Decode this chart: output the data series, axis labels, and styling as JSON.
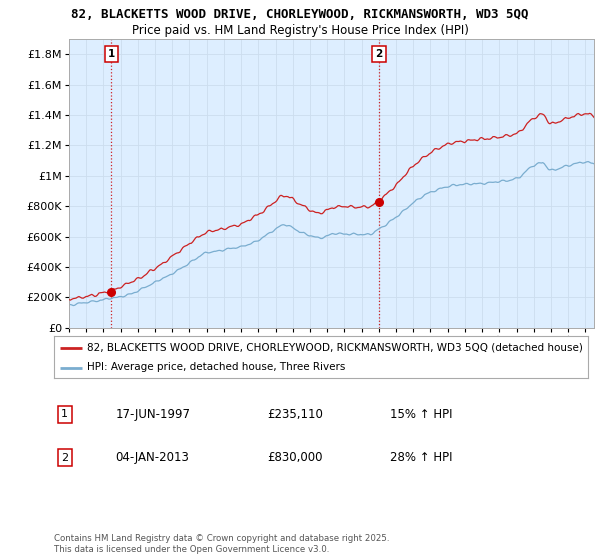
{
  "title_line1": "82, BLACKETTS WOOD DRIVE, CHORLEYWOOD, RICKMANSWORTH, WD3 5QQ",
  "title_line2": "Price paid vs. HM Land Registry's House Price Index (HPI)",
  "ytick_values": [
    0,
    200000,
    400000,
    600000,
    800000,
    1000000,
    1200000,
    1400000,
    1600000,
    1800000
  ],
  "ylim": [
    0,
    1900000
  ],
  "xlim_start": 1995.0,
  "xlim_end": 2025.5,
  "sale1_x": 1997.46,
  "sale1_y": 235110,
  "sale2_x": 2013.01,
  "sale2_y": 830000,
  "vline_color": "#cc0000",
  "sale_marker_color": "#cc0000",
  "hpi_line_color": "#7aadcf",
  "price_line_color": "#cc2222",
  "chart_bg_color": "#ddeeff",
  "legend_label_price": "82, BLACKETTS WOOD DRIVE, CHORLEYWOOD, RICKMANSWORTH, WD3 5QQ (detached house)",
  "legend_label_hpi": "HPI: Average price, detached house, Three Rivers",
  "annotation1_date": "17-JUN-1997",
  "annotation1_price": "£235,110",
  "annotation1_pct": "15% ↑ HPI",
  "annotation2_date": "04-JAN-2013",
  "annotation2_price": "£830,000",
  "annotation2_pct": "28% ↑ HPI",
  "footer": "Contains HM Land Registry data © Crown copyright and database right 2025.\nThis data is licensed under the Open Government Licence v3.0.",
  "background_color": "#ffffff",
  "grid_color": "#ccddee"
}
